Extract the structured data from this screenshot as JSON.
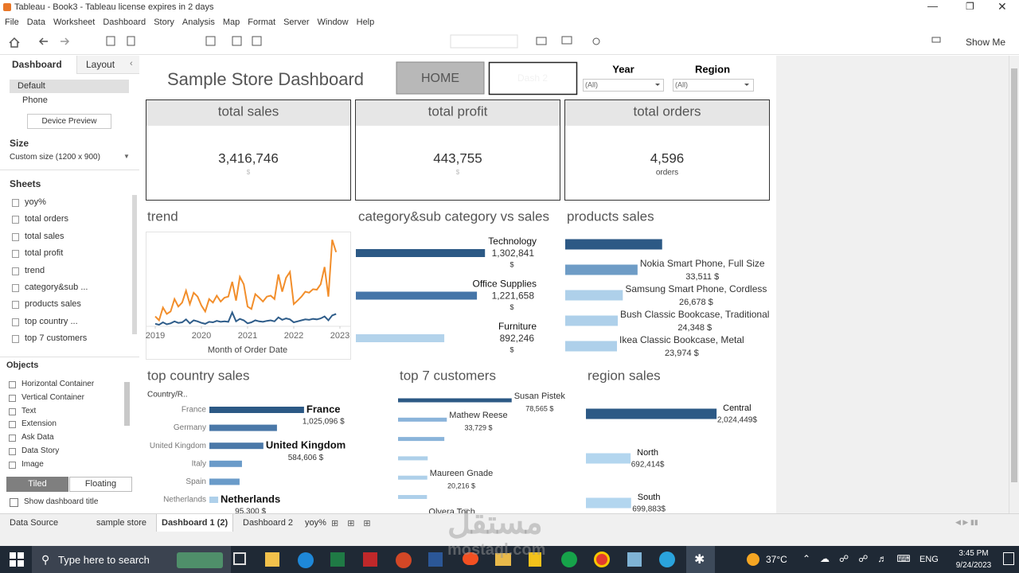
{
  "window": {
    "title": "Tableau - Book3 - Tableau license expires in 2 days"
  },
  "menu": [
    "File",
    "Data",
    "Worksheet",
    "Dashboard",
    "Story",
    "Analysis",
    "Map",
    "Format",
    "Server",
    "Window",
    "Help"
  ],
  "toolbar": {
    "show_me": "Show Me"
  },
  "sidebar": {
    "tabs": [
      "Dashboard",
      "Layout"
    ],
    "devices": [
      "Default",
      "Phone"
    ],
    "device_preview": "Device Preview",
    "size_title": "Size",
    "size_value": "Custom size (1200 x 900)",
    "sheets_title": "Sheets",
    "sheets": [
      "yoy%",
      "total orders",
      "total sales",
      "total profit",
      "trend",
      "category&sub ...",
      "products sales",
      "top country ...",
      "top 7 customers"
    ],
    "objects_title": "Objects",
    "objects": [
      "Horizontal Container",
      "Vertical Container",
      "Text",
      "Extension",
      "Ask Data",
      "Data Story",
      "Image"
    ],
    "layout_modes": [
      "Tiled",
      "Floating"
    ],
    "show_title": "Show dashboard title"
  },
  "dashboard": {
    "title": "Sample Store Dashboard",
    "buttons": [
      "HOME",
      "Dash 2"
    ],
    "filters": [
      {
        "label": "Year",
        "value": "(All)"
      },
      {
        "label": "Region",
        "value": "(All)"
      }
    ],
    "kpis": [
      {
        "title": "total sales",
        "value": "3,416,746",
        "unit": "$"
      },
      {
        "title": "total profit",
        "value": "443,755",
        "unit": "$"
      },
      {
        "title": "total orders",
        "value": "4,596",
        "unit": "orders"
      }
    ],
    "trend": {
      "type": "line",
      "title": "trend",
      "x_label": "Month of Order Date",
      "xlim": [
        0,
        48
      ],
      "xticks": [
        {
          "value": 0,
          "label": "2019"
        },
        {
          "value": 12,
          "label": "2020"
        },
        {
          "value": 24,
          "label": "2021"
        },
        {
          "value": 36,
          "label": "2022"
        },
        {
          "value": 48,
          "label": "2023"
        }
      ],
      "ylim": [
        0,
        190
      ],
      "series": [
        {
          "color": "#f28e2b",
          "values": [
            20,
            12,
            38,
            25,
            30,
            55,
            40,
            48,
            72,
            45,
            68,
            60,
            42,
            30,
            55,
            48,
            62,
            50,
            58,
            60,
            90,
            52,
            100,
            85,
            40,
            35,
            65,
            58,
            50,
            60,
            62,
            55,
            105,
            70,
            98,
            110,
            45,
            52,
            60,
            70,
            68,
            75,
            74,
            85,
            120,
            60,
            175,
            150
          ]
        },
        {
          "color": "#2f5d8a",
          "values": [
            5,
            3,
            8,
            4,
            6,
            10,
            7,
            8,
            14,
            6,
            12,
            10,
            7,
            5,
            9,
            8,
            11,
            9,
            10,
            9,
            28,
            10,
            15,
            12,
            6,
            8,
            12,
            10,
            9,
            11,
            12,
            10,
            18,
            13,
            16,
            14,
            8,
            10,
            12,
            14,
            13,
            15,
            14,
            16,
            20,
            12,
            22,
            25
          ]
        }
      ]
    },
    "category": {
      "type": "bar",
      "title": "category&sub category vs sales",
      "categories": [
        "Technology",
        "Office Supplies",
        "Furniture"
      ],
      "values": [
        1302841,
        1221658,
        892246
      ],
      "value_labels": [
        "1,302,841",
        "1,221,658",
        "892,246"
      ],
      "unit": "$",
      "colors": [
        "#2c5985",
        "#4575a8",
        "#b3d3eb"
      ],
      "xlim": [
        0,
        2000000
      ]
    },
    "products": {
      "type": "bar",
      "title": "products sales",
      "categories": [
        null,
        "Nokia Smart Phone, Full Size",
        "Samsung Smart Phone, Cordless",
        "Bush Classic Bookcase, Traditional",
        "Ikea Classic Bookcase, Metal"
      ],
      "values": [
        44900,
        33511,
        26678,
        24348,
        23974
      ],
      "value_labels": [
        null,
        "33,511 $",
        "26,678 $",
        "24,348 $",
        "23,974 $"
      ],
      "colors": [
        "#2c5985",
        "#6e9cc6",
        "#aed0ea",
        "#aed0ea",
        "#aed0ea"
      ],
      "xlim": [
        0,
        90000
      ]
    },
    "country": {
      "type": "bar",
      "title": "top country sales",
      "header": "Country/R..",
      "categories": [
        "France",
        "Germany",
        "United Kingdom",
        "Italy",
        "Spain",
        "Netherlands"
      ],
      "values": [
        1025096,
        732000,
        584606,
        353000,
        327000,
        95300
      ],
      "value_labels": [
        "1,025,096 $",
        null,
        "584,606 $",
        null,
        null,
        "95,300 $"
      ],
      "highlight": [
        true,
        false,
        true,
        false,
        false,
        true
      ],
      "colors": [
        "#2c5985",
        "#4a78a8",
        "#4a78a8",
        "#6a9bc9",
        "#6a9bc9",
        "#aed0ea"
      ],
      "xlim": [
        0,
        1500000
      ]
    },
    "customers": {
      "type": "bar",
      "title": "top 7 customers",
      "categories": [
        "Susan Pistek",
        "Mathew Reese",
        null,
        null,
        "Maureen Gnade",
        null,
        "Olvera Toch"
      ],
      "values": [
        78565,
        33729,
        32000,
        20500,
        20216,
        20000,
        19500
      ],
      "value_labels": [
        "78,565 $",
        "33,729 $",
        null,
        null,
        "20,216 $",
        null,
        null
      ],
      "colors": [
        "#2c5985",
        "#8ab4da",
        "#8ab4da",
        "#aed0ea",
        "#aed0ea",
        "#aed0ea",
        "#aed0ea"
      ],
      "xlim": [
        0,
        120000
      ]
    },
    "region": {
      "type": "bar",
      "title": "region sales",
      "categories": [
        "Central",
        "North",
        "South"
      ],
      "values": [
        2024449,
        692414,
        699883
      ],
      "value_labels": [
        "2,024,449$",
        "692,414$",
        "699,883$"
      ],
      "colors": [
        "#2c5985",
        "#b3d6ef",
        "#b3d6ef"
      ],
      "xlim": [
        0,
        2800000
      ]
    }
  },
  "tabs": [
    "Data Source",
    "sample store",
    "Dashboard 1 (2)",
    "Dashboard 2",
    "yoy%"
  ],
  "taskbar": {
    "search": "Type here to search",
    "weather": "37°C",
    "language": "ENG",
    "time": "3:45 PM",
    "date": "9/24/2023"
  },
  "watermark": {
    "arabic": "مستقل",
    "latin": "mostaql.com"
  }
}
